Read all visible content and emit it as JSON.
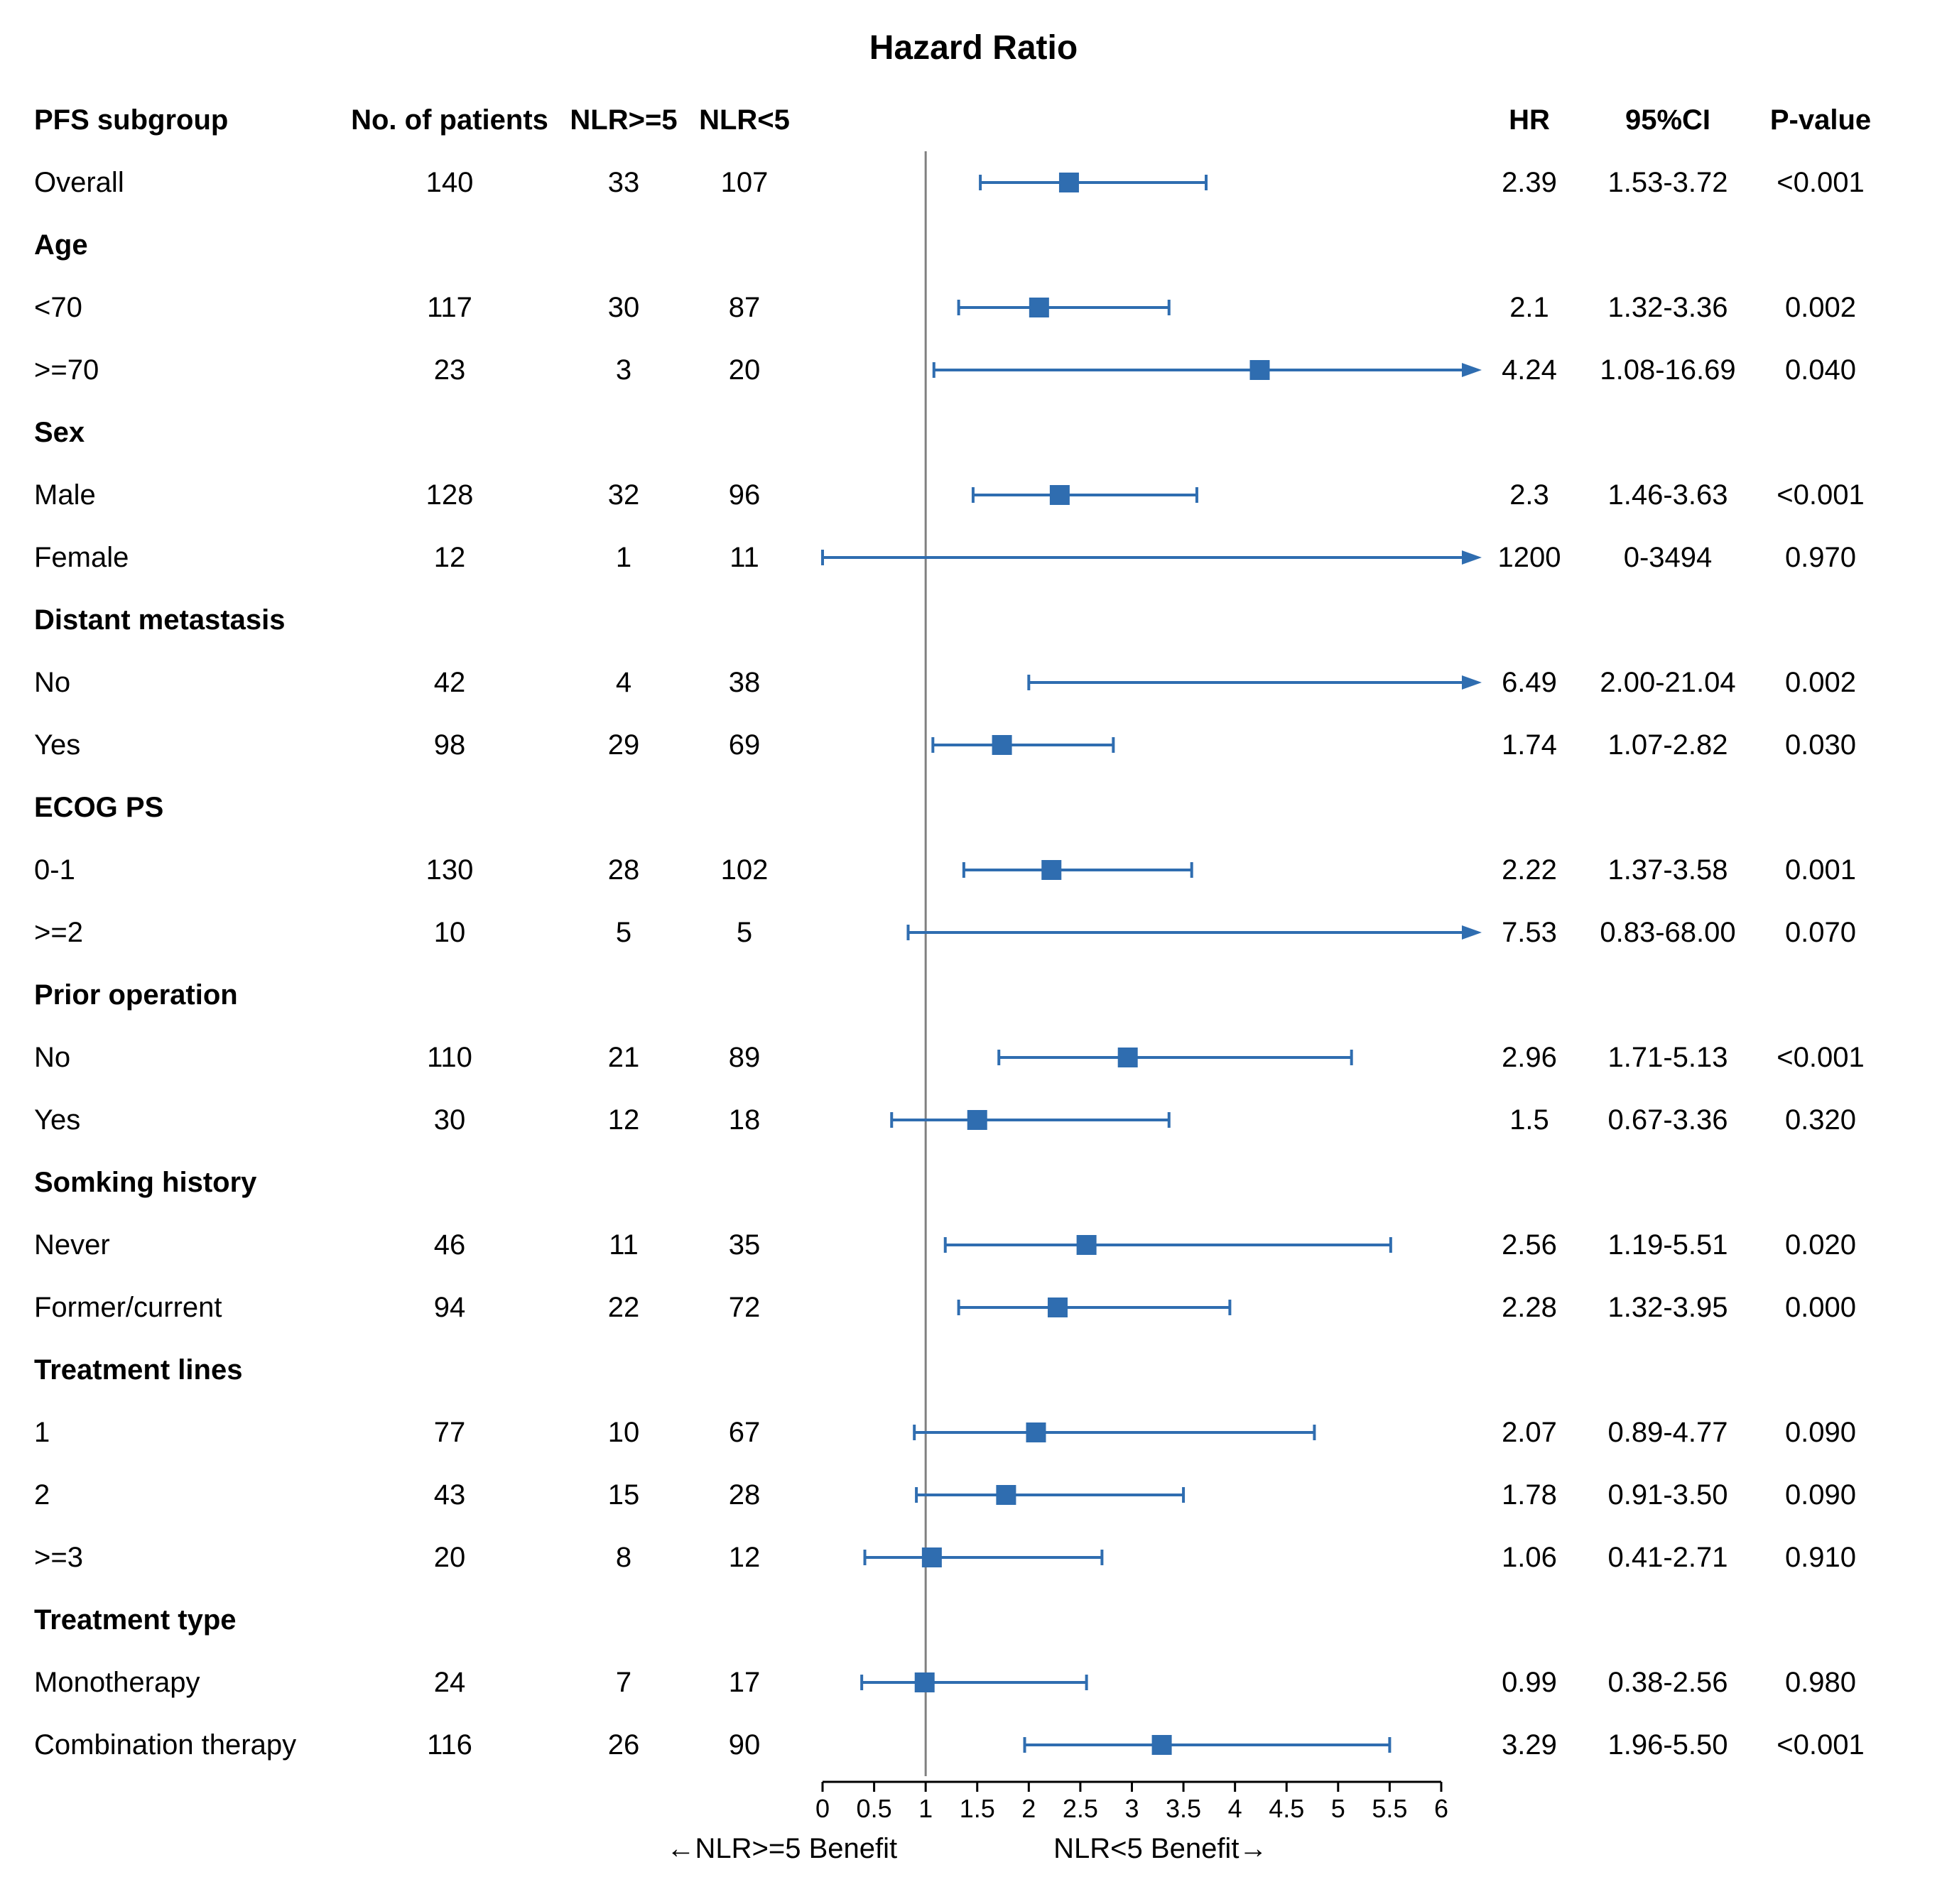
{
  "title": "Hazard Ratio",
  "headers": {
    "subgroup": "PFS subgroup",
    "n": "No. of patients",
    "nlr_ge5": "NLR>=5",
    "nlr_lt5": "NLR<5",
    "hr": "HR",
    "ci": "95%CI",
    "p": "P-value"
  },
  "x_axis": {
    "min": 0,
    "max": 6.2,
    "ref": 1.0,
    "ticks": [
      0,
      0.5,
      1,
      1.5,
      2,
      2.5,
      3,
      3.5,
      4,
      4.5,
      5,
      5.5,
      6
    ],
    "label_left": "←NLR>=5 Benefit",
    "label_right": "NLR<5 Benefit→"
  },
  "style": {
    "marker_color": "#2f6db0",
    "line_color": "#2f6db0",
    "ref_line_color": "#808080",
    "axis_color": "#000000",
    "font_size_body": 40,
    "font_size_title": 48,
    "marker_size": 28,
    "whisker_cap": 22,
    "line_width": 4,
    "arrow_len": 28
  },
  "rows": [
    {
      "type": "data",
      "label": "Overall",
      "n": "140",
      "ge5": "33",
      "lt5": "107",
      "hr": "2.39",
      "lo": 1.53,
      "hi": 3.72,
      "pt": 2.39,
      "ci": "1.53-3.72",
      "p": "<0.001"
    },
    {
      "type": "header",
      "label": "Age"
    },
    {
      "type": "data",
      "label": "<70",
      "n": "117",
      "ge5": "30",
      "lt5": "87",
      "hr": "2.1",
      "lo": 1.32,
      "hi": 3.36,
      "pt": 2.1,
      "ci": "1.32-3.36",
      "p": "0.002"
    },
    {
      "type": "data",
      "label": ">=70",
      "n": "23",
      "ge5": "3",
      "lt5": "20",
      "hr": "4.24",
      "lo": 1.08,
      "hi": 16.69,
      "pt": 4.24,
      "ci": "1.08-16.69",
      "p": "0.040",
      "arrow_right": true
    },
    {
      "type": "header",
      "label": "Sex"
    },
    {
      "type": "data",
      "label": "Male",
      "n": "128",
      "ge5": "32",
      "lt5": "96",
      "hr": "2.3",
      "lo": 1.46,
      "hi": 3.63,
      "pt": 2.3,
      "ci": "1.46-3.63",
      "p": "<0.001"
    },
    {
      "type": "data",
      "label": "Female",
      "n": "12",
      "ge5": "1",
      "lt5": "11",
      "hr": "1200",
      "lo": 0,
      "hi": 3494,
      "pt": null,
      "ci": "0-3494",
      "p": "0.970",
      "arrow_right": true
    },
    {
      "type": "header",
      "label": "Distant metastasis"
    },
    {
      "type": "data",
      "label": "No",
      "n": "42",
      "ge5": "4",
      "lt5": "38",
      "hr": "6.49",
      "lo": 2.0,
      "hi": 21.04,
      "pt": null,
      "ci": "2.00-21.04",
      "p": "0.002",
      "arrow_right": true
    },
    {
      "type": "data",
      "label": "Yes",
      "n": "98",
      "ge5": "29",
      "lt5": "69",
      "hr": "1.74",
      "lo": 1.07,
      "hi": 2.82,
      "pt": 1.74,
      "ci": "1.07-2.82",
      "p": "0.030"
    },
    {
      "type": "header",
      "label": "ECOG PS"
    },
    {
      "type": "data",
      "label": "0-1",
      "n": "130",
      "ge5": "28",
      "lt5": "102",
      "hr": "2.22",
      "lo": 1.37,
      "hi": 3.58,
      "pt": 2.22,
      "ci": "1.37-3.58",
      "p": "0.001"
    },
    {
      "type": "data",
      "label": ">=2",
      "n": "10",
      "ge5": "5",
      "lt5": "5",
      "hr": "7.53",
      "lo": 0.83,
      "hi": 68.0,
      "pt": null,
      "ci": "0.83-68.00",
      "p": "0.070",
      "arrow_right": true
    },
    {
      "type": "header",
      "label": "Prior operation"
    },
    {
      "type": "data",
      "label": "No",
      "n": "110",
      "ge5": "21",
      "lt5": "89",
      "hr": "2.96",
      "lo": 1.71,
      "hi": 5.13,
      "pt": 2.96,
      "ci": "1.71-5.13",
      "p": "<0.001"
    },
    {
      "type": "data",
      "label": "Yes",
      "n": "30",
      "ge5": "12",
      "lt5": "18",
      "hr": "1.5",
      "lo": 0.67,
      "hi": 3.36,
      "pt": 1.5,
      "ci": "0.67-3.36",
      "p": "0.320"
    },
    {
      "type": "header",
      "label": "Somking history"
    },
    {
      "type": "data",
      "label": "Never",
      "n": "46",
      "ge5": "11",
      "lt5": "35",
      "hr": "2.56",
      "lo": 1.19,
      "hi": 5.51,
      "pt": 2.56,
      "ci": "1.19-5.51",
      "p": "0.020"
    },
    {
      "type": "data",
      "label": "Former/current",
      "n": "94",
      "ge5": "22",
      "lt5": "72",
      "hr": "2.28",
      "lo": 1.32,
      "hi": 3.95,
      "pt": 2.28,
      "ci": "1.32-3.95",
      "p": "0.000"
    },
    {
      "type": "header",
      "label": "Treatment lines"
    },
    {
      "type": "data",
      "label": "1",
      "n": "77",
      "ge5": "10",
      "lt5": "67",
      "hr": "2.07",
      "lo": 0.89,
      "hi": 4.77,
      "pt": 2.07,
      "ci": "0.89-4.77",
      "p": "0.090"
    },
    {
      "type": "data",
      "label": "2",
      "n": "43",
      "ge5": "15",
      "lt5": "28",
      "hr": "1.78",
      "lo": 0.91,
      "hi": 3.5,
      "pt": 1.78,
      "ci": "0.91-3.50",
      "p": "0.090"
    },
    {
      "type": "data",
      "label": ">=3",
      "n": "20",
      "ge5": "8",
      "lt5": "12",
      "hr": "1.06",
      "lo": 0.41,
      "hi": 2.71,
      "pt": 1.06,
      "ci": "0.41-2.71",
      "p": "0.910"
    },
    {
      "type": "header",
      "label": "Treatment type"
    },
    {
      "type": "data",
      "label": "Monotherapy",
      "n": "24",
      "ge5": "7",
      "lt5": "17",
      "hr": "0.99",
      "lo": 0.38,
      "hi": 2.56,
      "pt": 0.99,
      "ci": "0.38-2.56",
      "p": "0.980"
    },
    {
      "type": "data",
      "label": "Combination therapy",
      "n": "116",
      "ge5": "26",
      "lt5": "90",
      "hr": "3.29",
      "lo": 1.96,
      "hi": 5.5,
      "pt": 3.29,
      "ci": "1.96-5.50",
      "p": "<0.001"
    }
  ]
}
